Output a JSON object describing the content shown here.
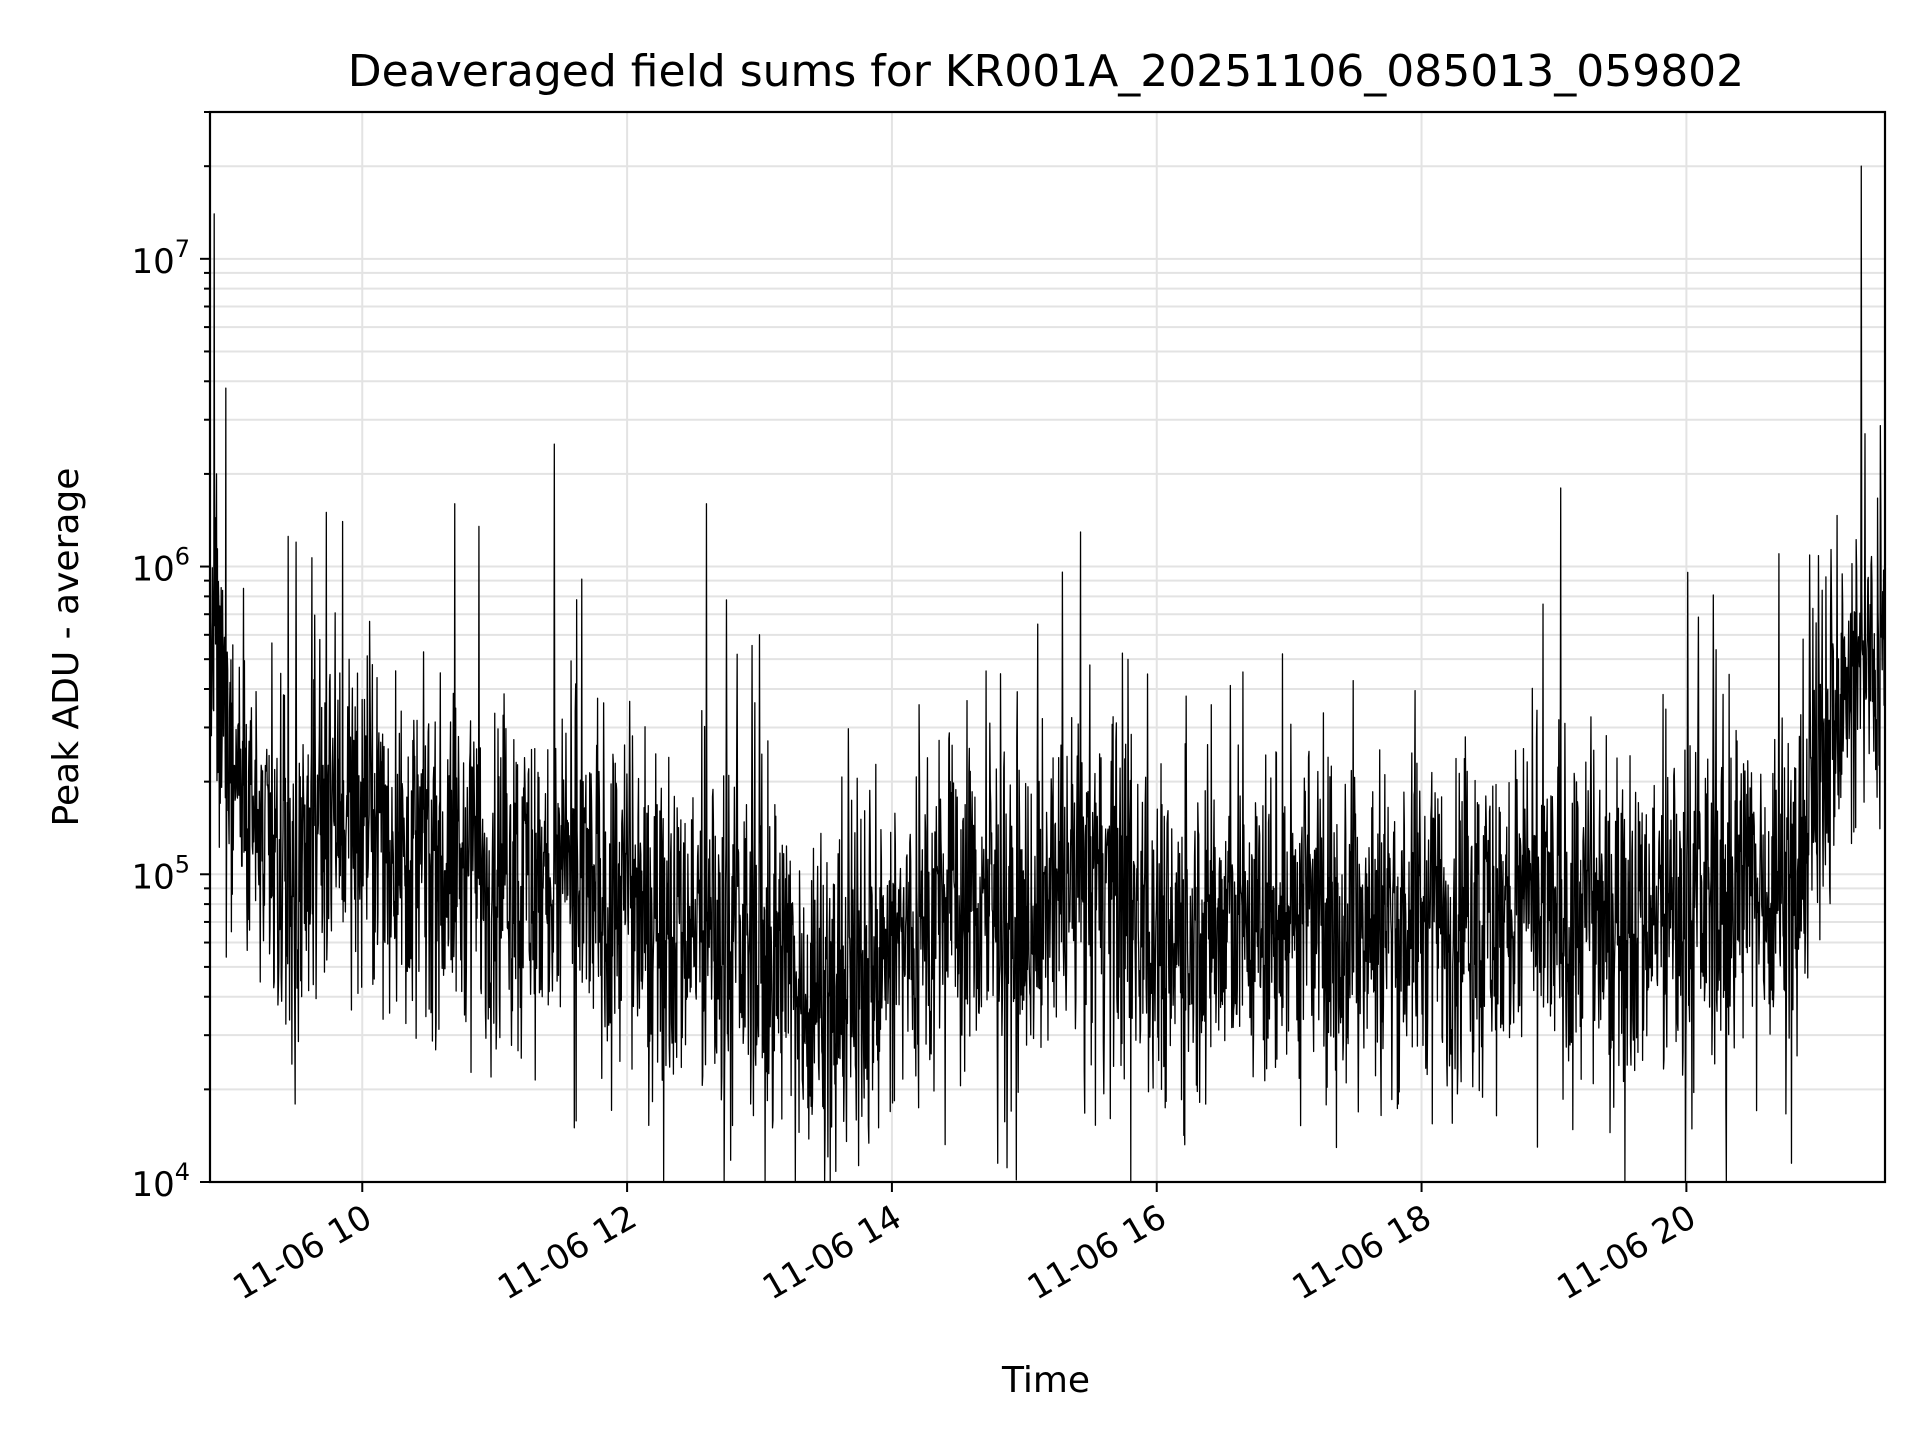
{
  "chart_data": {
    "type": "line",
    "title": "Deaveraged field sums for KR001A_20251106_085013_059802",
    "xlabel": "Time",
    "ylabel": "Peak ADU - average",
    "yscale": "log",
    "ylim": [
      10000,
      30000000
    ],
    "xlim_hours": [
      8.85,
      21.5
    ],
    "grid": true,
    "legend": "none",
    "line_color": "#000000",
    "x_ticks": [
      {
        "value": 10,
        "label": "11-06 10"
      },
      {
        "value": 12,
        "label": "11-06 12"
      },
      {
        "value": 14,
        "label": "11-06 14"
      },
      {
        "value": 16,
        "label": "11-06 16"
      },
      {
        "value": 18,
        "label": "11-06 18"
      },
      {
        "value": 20,
        "label": "11-06 20"
      }
    ],
    "y_ticks": [
      {
        "value": 10000,
        "base": "10",
        "exp": "4"
      },
      {
        "value": 100000,
        "base": "10",
        "exp": "5"
      },
      {
        "value": 1000000,
        "base": "10",
        "exp": "6"
      },
      {
        "value": 10000000,
        "base": "10",
        "exp": "7"
      }
    ],
    "series": [
      {
        "name": "Deaveraged field sum",
        "baseline_profile": [
          [
            8.85,
            400000
          ],
          [
            9.1,
            200000
          ],
          [
            9.35,
            90000
          ],
          [
            9.55,
            110000
          ],
          [
            9.75,
            180000
          ],
          [
            10.0,
            150000
          ],
          [
            10.5,
            110000
          ],
          [
            11.0,
            100000
          ],
          [
            12.0,
            85000
          ],
          [
            13.0,
            55000
          ],
          [
            13.5,
            40000
          ],
          [
            14.0,
            55000
          ],
          [
            14.5,
            85000
          ],
          [
            15.0,
            70000
          ],
          [
            15.5,
            100000
          ],
          [
            16.0,
            65000
          ],
          [
            17.0,
            70000
          ],
          [
            18.0,
            70000
          ],
          [
            19.0,
            75000
          ],
          [
            20.0,
            75000
          ],
          [
            20.4,
            90000
          ],
          [
            20.85,
            100000
          ],
          [
            21.0,
            250000
          ],
          [
            21.3,
            450000
          ],
          [
            21.5,
            550000
          ]
        ],
        "spikes": [
          [
            8.88,
            14000000
          ],
          [
            8.9,
            2000000
          ],
          [
            8.97,
            3800000
          ],
          [
            9.5,
            1200000
          ],
          [
            9.73,
            1500000
          ],
          [
            9.85,
            1400000
          ],
          [
            10.7,
            1600000
          ],
          [
            10.88,
            1350000
          ],
          [
            11.45,
            2500000
          ],
          [
            11.62,
            780000
          ],
          [
            12.6,
            1600000
          ],
          [
            13.0,
            600000
          ],
          [
            15.1,
            650000
          ],
          [
            16.95,
            520000
          ],
          [
            19.05,
            1800000
          ],
          [
            20.7,
            1100000
          ],
          [
            21.32,
            20000000
          ],
          [
            21.35,
            2700000
          ]
        ],
        "dips": [
          [
            11.6,
            15000
          ],
          [
            13.1,
            15000
          ],
          [
            13.3,
            14500
          ],
          [
            13.9,
            15000
          ],
          [
            14.9,
            17000
          ],
          [
            20.3,
            18000
          ]
        ]
      }
    ]
  }
}
